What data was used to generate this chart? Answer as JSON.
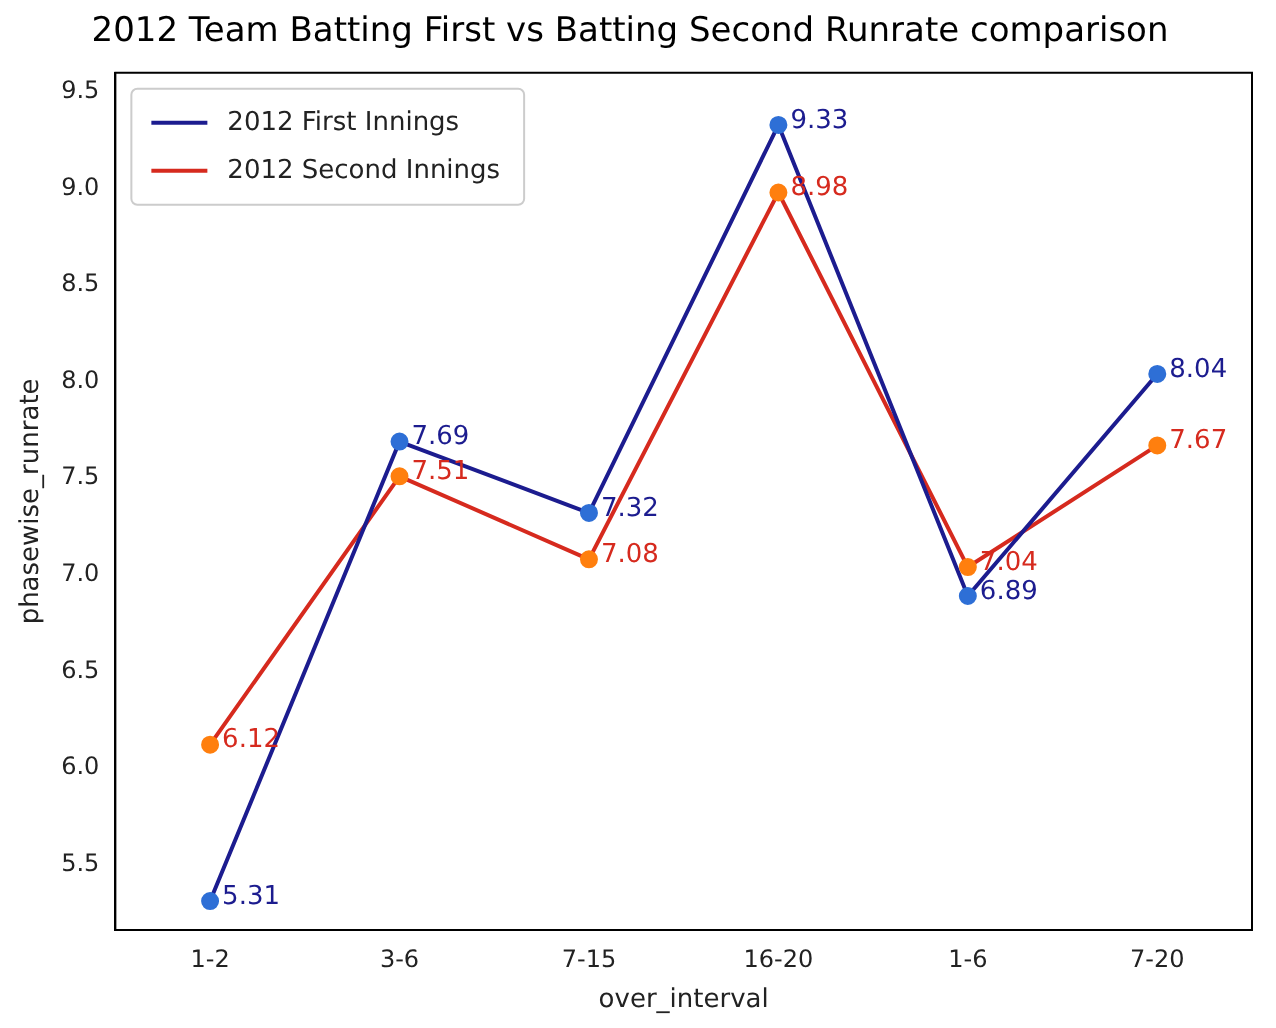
{
  "chart_data": {
    "type": "line",
    "title": "2012 Team Batting First vs Batting Second Runrate comparison",
    "xlabel": "over_interval",
    "ylabel": "phasewise_runrate",
    "categories": [
      "1-2",
      "3-6",
      "7-15",
      "16-20",
      "1-6",
      "7-20"
    ],
    "series": [
      {
        "name": "2012 First Innings",
        "color": "#1c1c8f",
        "values": [
          5.31,
          7.69,
          7.32,
          9.33,
          6.89,
          8.04
        ],
        "value_labels": [
          "5.31",
          "7.69",
          "7.32",
          "9.33",
          "6.89",
          "8.04"
        ]
      },
      {
        "name": "2012 Second Innings",
        "color": "#d62a1e",
        "values": [
          6.12,
          7.51,
          7.08,
          8.98,
          7.04,
          7.67
        ],
        "value_labels": [
          "6.12",
          "7.51",
          "7.08",
          "8.98",
          "7.04",
          "7.67"
        ]
      },
      {
        "type": "scatter",
        "color": "#2e6fd6",
        "values": [
          5.31,
          7.69,
          7.32,
          9.33,
          6.89,
          8.04
        ]
      },
      {
        "type": "scatter",
        "color": "#ff7f0e",
        "values": [
          6.12,
          7.51,
          7.08,
          8.98,
          7.04,
          7.67
        ]
      }
    ],
    "ylim": [
      5.16,
      9.6
    ],
    "yticks": [
      5.5,
      {
        "value": 6,
        "label": "6.0"
      },
      6.5,
      {
        "value": 7,
        "label": "7.0"
      },
      7.5,
      {
        "value": 8,
        "label": "8.0"
      },
      8.5,
      {
        "value": 9,
        "label": "9.0"
      },
      9.5
    ],
    "legend": "top left",
    "grid": false
  }
}
